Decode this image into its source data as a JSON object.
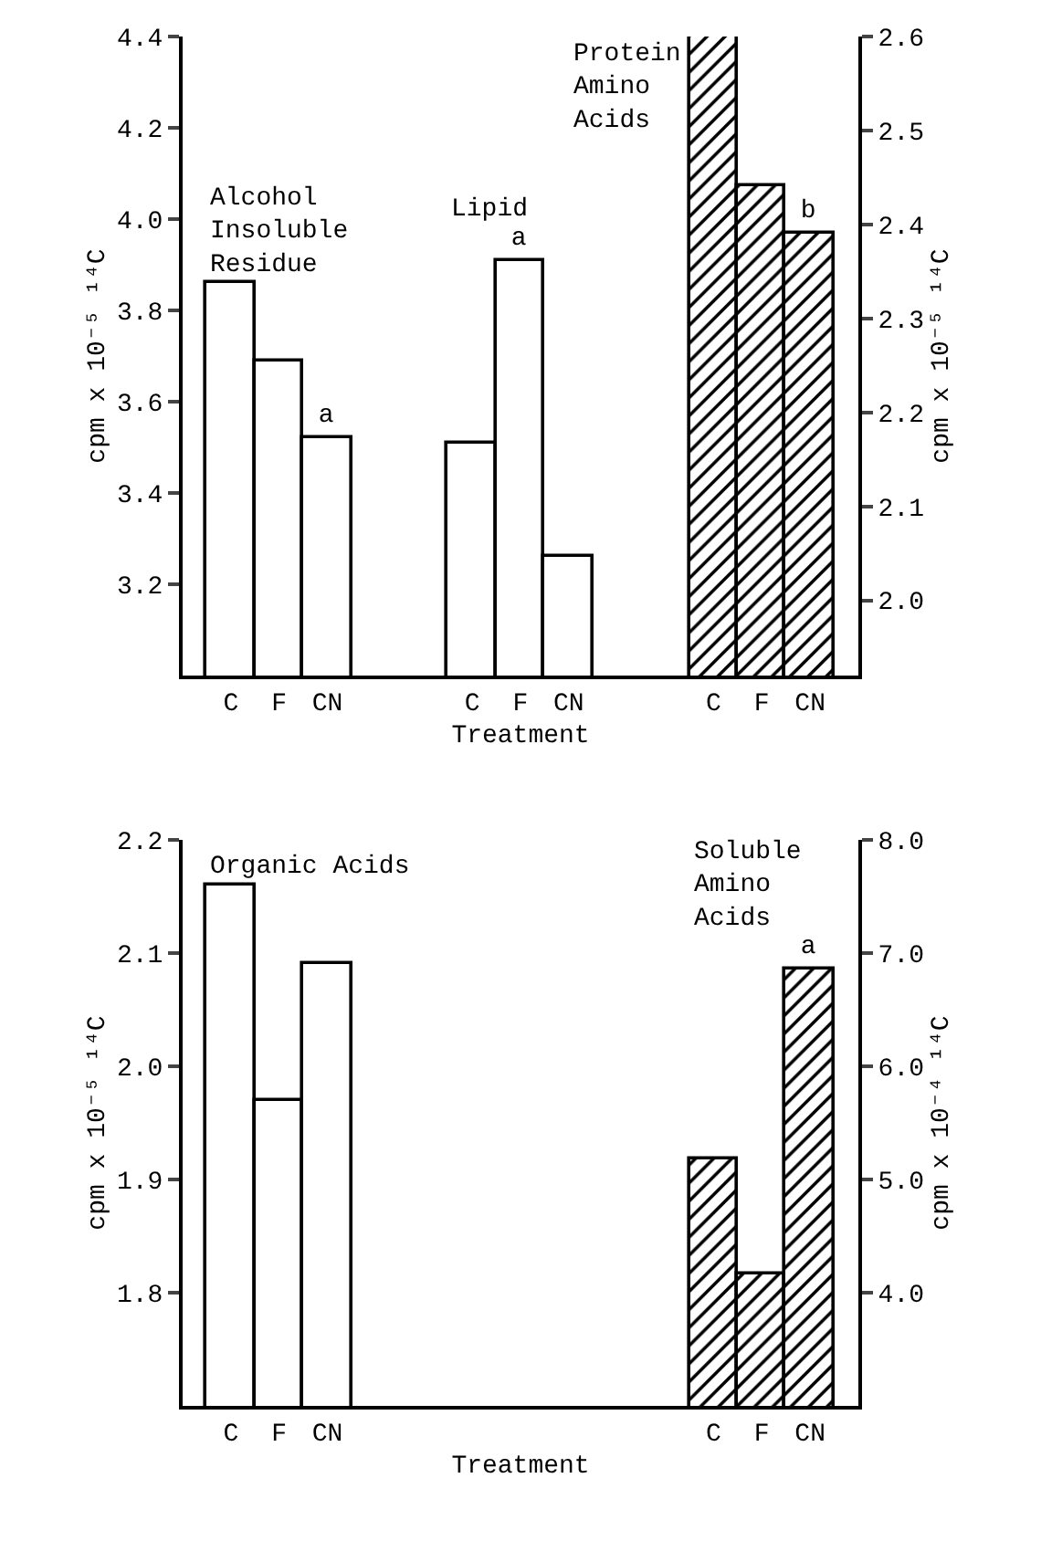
{
  "chart_data": [
    {
      "type": "bar",
      "xlabel": "Treatment",
      "ylabel": "cpm x 10⁻⁵ ¹⁴C",
      "y2label": "cpm x 10⁻⁵ ¹⁴C",
      "categories": [
        "C",
        "F",
        "CN",
        null,
        null,
        "C",
        "F",
        "CN",
        null,
        null,
        "C",
        "F",
        "CN"
      ],
      "ylim": [
        3.0,
        4.4
      ],
      "yticks": [
        3.2,
        3.4,
        3.6,
        3.8,
        {
          "value": 4.0,
          "label": "4.0"
        },
        4.2,
        4.4
      ],
      "y2lim": [
        1.92,
        2.6
      ],
      "y2ticks": [
        {
          "value": 2.0,
          "label": "2.0"
        },
        2.1,
        2.2,
        2.3,
        2.4,
        2.5,
        2.6
      ],
      "legend": false,
      "series": [
        {
          "name": "Alcohol Insoluble Residue",
          "color": "#ffffff",
          "values": [
            3.86,
            3.69,
            3.52,
            null,
            null,
            null,
            null,
            null,
            null,
            null,
            null,
            null,
            null
          ],
          "value_labels": [
            null,
            null,
            "a",
            null,
            null,
            null,
            null,
            null,
            null,
            null,
            null,
            null,
            null
          ]
        },
        {
          "name": "Lipid",
          "color": "#ffffff",
          "values": [
            null,
            null,
            null,
            null,
            null,
            3.51,
            3.91,
            3.26,
            null,
            null,
            null,
            null,
            null
          ],
          "value_labels": [
            null,
            null,
            null,
            null,
            null,
            null,
            "a",
            null,
            null,
            null,
            null,
            null,
            null
          ]
        },
        {
          "name": "Protein Amino Acids",
          "color": "#000000",
          "axis": "y2",
          "values": [
            null,
            null,
            null,
            null,
            null,
            null,
            null,
            null,
            null,
            null,
            2.6,
            2.44,
            2.39
          ],
          "value_labels": [
            null,
            null,
            null,
            null,
            null,
            null,
            null,
            null,
            null,
            null,
            null,
            null,
            "b"
          ]
        }
      ]
    },
    {
      "type": "bar",
      "xlabel": "Treatment",
      "ylabel": "cpm x 10⁻⁵ ¹⁴C",
      "y2label": "cpm x 10⁻⁴ ¹⁴C",
      "categories": [
        "C",
        "F",
        "CN",
        null,
        null,
        null,
        null,
        null,
        null,
        null,
        "C",
        "F",
        "CN"
      ],
      "ylim": [
        1.7,
        2.2
      ],
      "yticks": [
        1.8,
        1.9,
        {
          "value": 2.0,
          "label": "2.0"
        },
        2.1,
        2.2
      ],
      "y2lim": [
        3.0,
        8.0
      ],
      "y2ticks": [
        {
          "value": 4,
          "label": "4.0"
        },
        {
          "value": 5,
          "label": "5.0"
        },
        {
          "value": 6,
          "label": "6.0"
        },
        {
          "value": 7,
          "label": "7.0"
        },
        {
          "value": 8,
          "label": "8.0"
        }
      ],
      "legend": false,
      "series": [
        {
          "name": "Organic Acids",
          "color": "#ffffff",
          "values": [
            2.16,
            1.97,
            2.09,
            null,
            null,
            null,
            null,
            null,
            null,
            null,
            null,
            null,
            null
          ]
        },
        {
          "name": "Soluble Amino Acids",
          "color": "#000000",
          "axis": "y2",
          "values": [
            null,
            null,
            null,
            null,
            null,
            null,
            null,
            null,
            null,
            null,
            5.18,
            4.16,
            6.86
          ],
          "value_labels": [
            null,
            null,
            null,
            null,
            null,
            null,
            null,
            null,
            null,
            null,
            null,
            null,
            "a"
          ]
        }
      ]
    }
  ]
}
